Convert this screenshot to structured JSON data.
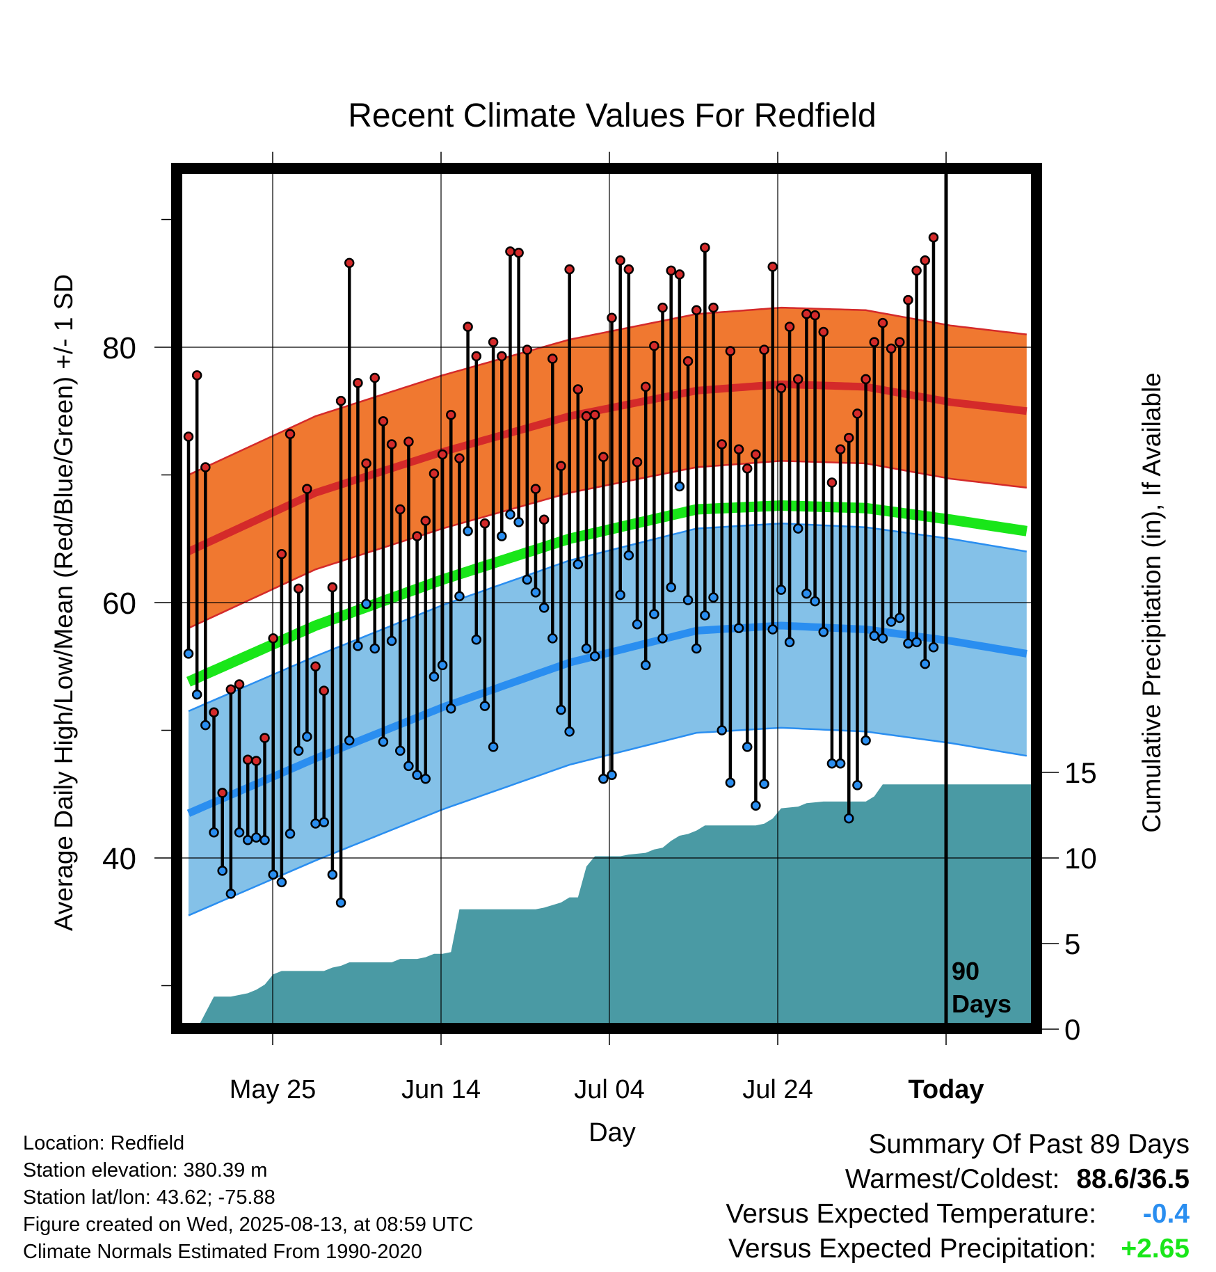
{
  "chart_data": {
    "type": "line",
    "title": "Recent Climate Values For Redfield",
    "xlabel": "Day",
    "ylabel_left": "Average Daily High/Low/Mean (Red/Blue/Green) +/- 1 SD",
    "ylabel_right": "Cumulative Precipitation (in), If Available",
    "x_tick_labels": [
      "May 25",
      "Jun 14",
      "Jul 04",
      "Jul 24",
      "Today"
    ],
    "y_tick_labels_left": [
      "40",
      "60",
      "80"
    ],
    "y_tick_labels_right": [
      "0",
      "5",
      "10",
      "15"
    ],
    "ylim_left": [
      27,
      93
    ],
    "ylim_right": [
      0,
      15
    ],
    "today_label": [
      "90",
      "Days"
    ],
    "days": 90,
    "today_index": 89,
    "colors": {
      "high_band": "#f07830",
      "high_line": "#d42a2a",
      "low_band": "#84c1e8",
      "low_line": "#2a8ef0",
      "mean_line": "#19e619",
      "precip": "#4a9aa4",
      "high_dot": "#d42a2a",
      "low_dot": "#2a8ef0"
    },
    "normal_high": [
      [
        0,
        64.0
      ],
      [
        15,
        68.6
      ],
      [
        30,
        71.8
      ],
      [
        45,
        74.6
      ],
      [
        60,
        76.6
      ],
      [
        70,
        77.1
      ],
      [
        80,
        76.9
      ],
      [
        90,
        75.7
      ],
      [
        99,
        75.0
      ]
    ],
    "normal_high_sd": 6.0,
    "normal_low": [
      [
        0,
        43.5
      ],
      [
        15,
        47.8
      ],
      [
        30,
        51.8
      ],
      [
        45,
        55.3
      ],
      [
        60,
        57.8
      ],
      [
        70,
        58.2
      ],
      [
        80,
        57.9
      ],
      [
        90,
        57.0
      ],
      [
        99,
        56.0
      ]
    ],
    "normal_low_sd": 8.0,
    "normal_mean": [
      [
        0,
        53.8
      ],
      [
        15,
        58.2
      ],
      [
        30,
        61.8
      ],
      [
        45,
        65.0
      ],
      [
        60,
        67.3
      ],
      [
        70,
        67.6
      ],
      [
        80,
        67.4
      ],
      [
        90,
        66.5
      ],
      [
        99,
        65.6
      ]
    ],
    "precip_cumulative": [
      [
        1,
        0
      ],
      [
        3,
        1.9
      ],
      [
        5,
        1.9
      ],
      [
        7,
        2.1
      ],
      [
        8,
        2.3
      ],
      [
        9,
        2.6
      ],
      [
        10,
        3.2
      ],
      [
        11,
        3.4
      ],
      [
        16,
        3.4
      ],
      [
        17,
        3.6
      ],
      [
        18,
        3.7
      ],
      [
        19,
        3.9
      ],
      [
        24,
        3.9
      ],
      [
        25,
        4.1
      ],
      [
        27,
        4.1
      ],
      [
        28,
        4.2
      ],
      [
        29,
        4.4
      ],
      [
        30,
        4.4
      ],
      [
        31,
        4.5
      ],
      [
        32,
        7.0
      ],
      [
        36,
        7.0
      ],
      [
        41,
        7.0
      ],
      [
        42,
        7.1
      ],
      [
        44,
        7.4
      ],
      [
        45,
        7.7
      ],
      [
        46,
        7.7
      ],
      [
        47,
        9.5
      ],
      [
        48,
        10.1
      ],
      [
        51,
        10.1
      ],
      [
        52,
        10.2
      ],
      [
        54,
        10.3
      ],
      [
        55,
        10.5
      ],
      [
        56,
        10.6
      ],
      [
        57,
        11.0
      ],
      [
        58,
        11.3
      ],
      [
        59,
        11.4
      ],
      [
        60,
        11.6
      ],
      [
        61,
        11.9
      ],
      [
        67,
        11.9
      ],
      [
        68,
        12.0
      ],
      [
        69,
        12.3
      ],
      [
        70,
        12.9
      ],
      [
        72,
        13.0
      ],
      [
        73,
        13.2
      ],
      [
        75,
        13.3
      ],
      [
        80,
        13.3
      ],
      [
        81,
        13.6
      ],
      [
        82,
        14.3
      ],
      [
        99,
        14.3
      ]
    ],
    "daily_high": [
      73.0,
      77.8,
      70.6,
      51.4,
      45.1,
      53.2,
      53.6,
      47.7,
      47.6,
      49.4,
      57.2,
      63.8,
      73.2,
      61.1,
      68.9,
      55.0,
      53.1,
      61.2,
      75.8,
      86.6,
      77.2,
      70.9,
      77.6,
      74.2,
      72.4,
      67.3,
      72.6,
      65.2,
      66.4,
      70.1,
      71.6,
      74.7,
      71.3,
      81.6,
      79.3,
      66.2,
      80.4,
      79.3,
      87.5,
      87.4,
      79.8,
      68.9,
      66.5,
      79.1,
      70.7,
      86.1,
      76.7,
      74.6,
      74.7,
      71.4,
      82.3,
      86.8,
      86.1,
      71.0,
      76.9,
      80.1,
      83.1,
      86.0,
      85.7,
      78.9,
      82.9,
      87.8,
      83.1,
      72.4,
      79.7,
      72.0,
      70.5,
      71.6,
      79.8,
      86.3,
      76.8,
      81.6,
      77.5,
      82.6,
      82.5,
      81.2,
      69.4,
      72.0,
      72.9,
      74.8,
      77.5,
      80.4,
      81.9,
      79.9,
      80.4,
      83.7,
      86.0,
      86.8,
      88.6
    ],
    "daily_low": [
      56.0,
      52.8,
      50.4,
      42.0,
      39.0,
      37.2,
      42.0,
      41.4,
      41.6,
      41.4,
      38.7,
      38.1,
      41.9,
      48.4,
      49.5,
      42.7,
      42.8,
      38.7,
      36.5,
      49.2,
      56.6,
      59.9,
      56.4,
      49.1,
      57.0,
      48.4,
      47.2,
      46.5,
      46.2,
      54.2,
      55.1,
      51.7,
      60.5,
      65.6,
      57.1,
      51.9,
      48.7,
      65.2,
      66.9,
      66.3,
      61.8,
      60.8,
      59.6,
      57.2,
      51.6,
      49.9,
      63.0,
      56.4,
      55.8,
      46.2,
      46.5,
      60.6,
      63.7,
      58.3,
      55.1,
      59.1,
      57.2,
      61.2,
      69.1,
      60.2,
      56.4,
      59.0,
      60.4,
      50.0,
      45.9,
      58.0,
      48.7,
      44.1,
      45.8,
      57.9,
      61.0,
      56.9,
      65.8,
      60.7,
      60.1,
      57.7,
      47.4,
      47.4,
      43.1,
      45.7,
      49.2,
      57.4,
      57.2,
      58.5,
      58.8,
      56.8,
      56.9,
      55.2,
      56.5
    ]
  },
  "footer": {
    "location": "Location: Redfield",
    "elevation": "Station elevation: 380.39 m",
    "latlon": "Station lat/lon: 43.62; -75.88",
    "created": "Figure created on Wed, 2025-08-13, at 08:59 UTC",
    "normals": "Climate Normals Estimated From 1990-2020"
  },
  "summary": {
    "title": "Summary Of Past 89 Days",
    "warm_cold_label": "Warmest/Coldest:",
    "warm_cold_value": "88.6/36.5",
    "temp_label": "Versus Expected Temperature:",
    "temp_value": "-0.4",
    "temp_color": "#2a8ef0",
    "precip_label": "Versus Expected Precipitation:",
    "precip_value": "+2.65",
    "precip_color": "#19e619"
  }
}
